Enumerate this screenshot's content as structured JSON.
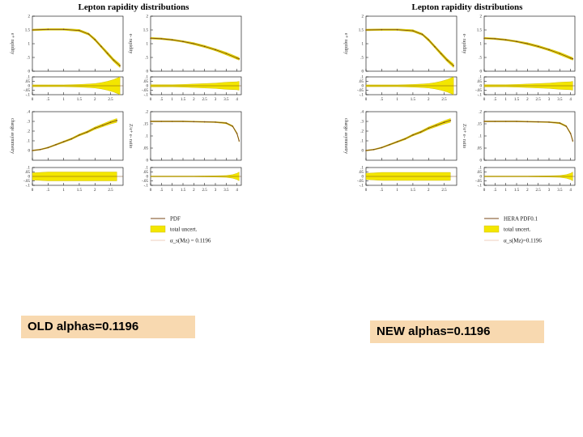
{
  "captions": {
    "left": "OLD alphas=0.1196",
    "right": "NEW alphas=0.1196"
  },
  "colors": {
    "band": "#f3e600",
    "band_edge": "#c8b400",
    "central": "#7a4a1a",
    "caption_bg": "#f8d9b0"
  },
  "chart_data": [
    {
      "type": "line",
      "title": "Lepton rapidity distributions",
      "legend": [
        "PDF",
        "total uncert.",
        "α_s(Mz) = 0.1196"
      ],
      "subplots": [
        {
          "name": "e-plus-rapidity",
          "ylabel": "e+ rapidity",
          "ylim": [
            0,
            2
          ],
          "yticks": [
            0,
            0.5,
            1,
            1.5,
            2
          ],
          "xlim": [
            0,
            2.9
          ],
          "xticks": [
            0,
            0.5,
            1,
            1.5,
            2,
            2.5
          ],
          "x": [
            0,
            0.5,
            1,
            1.5,
            1.8,
            2,
            2.2,
            2.4,
            2.6,
            2.8
          ],
          "y": [
            1.5,
            1.52,
            1.52,
            1.48,
            1.35,
            1.15,
            0.9,
            0.65,
            0.4,
            0.2
          ],
          "unc": [
            0.03,
            0.03,
            0.03,
            0.04,
            0.04,
            0.05,
            0.05,
            0.06,
            0.06,
            0.07
          ],
          "ratio": {
            "ylim": [
              -0.1,
              0.1
            ],
            "yticks": [
              -0.1,
              -0.05,
              0,
              0.05,
              0.1
            ],
            "unc": [
              0.01,
              0.01,
              0.01,
              0.015,
              0.02,
              0.025,
              0.035,
              0.05,
              0.07,
              0.1
            ]
          }
        },
        {
          "name": "e-minus-rapidity",
          "ylabel": "e- rapidity",
          "ylim": [
            0,
            2
          ],
          "yticks": [
            0,
            0.5,
            1,
            1.5,
            2
          ],
          "xlim": [
            0,
            4.2
          ],
          "xticks": [
            0,
            0.5,
            1,
            1.5,
            2,
            2.5,
            3,
            3.5,
            4
          ],
          "x": [
            0,
            0.5,
            1,
            1.5,
            2,
            2.5,
            3,
            3.5,
            4,
            4.1
          ],
          "y": [
            1.2,
            1.18,
            1.14,
            1.08,
            1,
            0.9,
            0.78,
            0.64,
            0.48,
            0.45
          ],
          "unc": [
            0.03,
            0.03,
            0.03,
            0.03,
            0.04,
            0.04,
            0.04,
            0.05,
            0.05,
            0.05
          ],
          "ratio": {
            "ylim": [
              -0.1,
              0.1
            ],
            "yticks": [
              -0.1,
              -0.05,
              0,
              0.05,
              0.1
            ],
            "unc": [
              0.012,
              0.012,
              0.012,
              0.015,
              0.02,
              0.025,
              0.03,
              0.04,
              0.045,
              0.05
            ]
          }
        },
        {
          "name": "charge-asymmetry",
          "ylabel": "charge asymmetry",
          "ylim": [
            -0.1,
            0.4
          ],
          "yticks": [
            0,
            0.1,
            0.2,
            0.3,
            0.4
          ],
          "xlim": [
            0,
            2.9
          ],
          "xticks": [
            0,
            0.5,
            1,
            1.5,
            2,
            2.5
          ],
          "x": [
            0,
            0.25,
            0.5,
            0.75,
            1,
            1.25,
            1.5,
            1.75,
            2,
            2.25,
            2.5,
            2.7
          ],
          "y": [
            0.0,
            0.01,
            0.03,
            0.06,
            0.09,
            0.12,
            0.16,
            0.19,
            0.23,
            0.26,
            0.29,
            0.31
          ],
          "unc": [
            0.005,
            0.005,
            0.006,
            0.007,
            0.008,
            0.009,
            0.01,
            0.011,
            0.013,
            0.015,
            0.017,
            0.02
          ],
          "ratio": {
            "ylim": [
              -0.1,
              0.1
            ],
            "yticks": [
              -0.1,
              -0.05,
              0,
              0.05,
              0.1
            ],
            "unc": [
              0.04,
              0.045,
              0.05,
              0.05,
              0.05,
              0.05,
              0.05,
              0.05,
              0.05,
              0.05,
              0.05,
              0.05
            ]
          }
        },
        {
          "name": "zee-ratio",
          "ylabel": "Z/e+ e- ratio",
          "ylim": [
            0,
            0.2
          ],
          "yticks": [
            0,
            0.05,
            0.1,
            0.15,
            0.2
          ],
          "xlim": [
            0,
            4.2
          ],
          "xticks": [
            0,
            0.5,
            1,
            1.5,
            2,
            2.5,
            3,
            3.5,
            4
          ],
          "x": [
            0,
            0.5,
            1,
            1.5,
            2,
            2.5,
            3,
            3.5,
            3.8,
            4,
            4.1
          ],
          "y": [
            0.16,
            0.16,
            0.16,
            0.16,
            0.159,
            0.158,
            0.157,
            0.153,
            0.14,
            0.11,
            0.08
          ],
          "unc": [
            0.002,
            0.002,
            0.002,
            0.002,
            0.002,
            0.002,
            0.002,
            0.003,
            0.003,
            0.004,
            0.005
          ],
          "ratio": {
            "ylim": [
              -0.1,
              0.1
            ],
            "yticks": [
              -0.1,
              -0.05,
              0,
              0.05,
              0.1
            ],
            "unc": [
              0.005,
              0.005,
              0.005,
              0.005,
              0.005,
              0.006,
              0.007,
              0.01,
              0.02,
              0.035,
              0.05
            ]
          }
        }
      ]
    },
    {
      "type": "line",
      "title": "Lepton rapidity distributions",
      "legend": [
        "HERA PDF0.1",
        "total uncert.",
        "α_s(Mz)=0.1196"
      ],
      "subplots": [
        {
          "name": "e-plus-rapidity",
          "ylabel": "e+ rapidity",
          "ylim": [
            0,
            2
          ],
          "yticks": [
            0,
            0.5,
            1,
            1.5,
            2
          ],
          "xlim": [
            0,
            2.9
          ],
          "xticks": [
            0,
            0.5,
            1,
            1.5,
            2,
            2.5
          ],
          "x": [
            0,
            0.5,
            1,
            1.5,
            1.8,
            2,
            2.2,
            2.4,
            2.6,
            2.8
          ],
          "y": [
            1.5,
            1.51,
            1.51,
            1.47,
            1.34,
            1.14,
            0.89,
            0.64,
            0.4,
            0.2
          ],
          "unc": [
            0.03,
            0.03,
            0.03,
            0.04,
            0.04,
            0.05,
            0.05,
            0.06,
            0.06,
            0.07
          ],
          "ratio": {
            "ylim": [
              -0.1,
              0.1
            ],
            "yticks": [
              -0.1,
              -0.05,
              0,
              0.05,
              0.1
            ],
            "unc": [
              0.01,
              0.01,
              0.01,
              0.015,
              0.02,
              0.025,
              0.035,
              0.05,
              0.07,
              0.1
            ]
          }
        },
        {
          "name": "e-minus-rapidity",
          "ylabel": "e- rapidity",
          "ylim": [
            0,
            2
          ],
          "yticks": [
            0,
            0.5,
            1,
            1.5,
            2
          ],
          "xlim": [
            0,
            4.2
          ],
          "xticks": [
            0,
            0.5,
            1,
            1.5,
            2,
            2.5,
            3,
            3.5,
            4
          ],
          "x": [
            0,
            0.5,
            1,
            1.5,
            2,
            2.5,
            3,
            3.5,
            4,
            4.1
          ],
          "y": [
            1.2,
            1.18,
            1.14,
            1.08,
            1,
            0.9,
            0.78,
            0.64,
            0.48,
            0.45
          ],
          "unc": [
            0.03,
            0.03,
            0.03,
            0.03,
            0.04,
            0.04,
            0.04,
            0.05,
            0.05,
            0.05
          ],
          "ratio": {
            "ylim": [
              -0.1,
              0.1
            ],
            "yticks": [
              -0.1,
              -0.05,
              0,
              0.05,
              0.1
            ],
            "unc": [
              0.012,
              0.012,
              0.012,
              0.015,
              0.02,
              0.025,
              0.03,
              0.04,
              0.045,
              0.05
            ]
          }
        },
        {
          "name": "charge-asymmetry",
          "ylabel": "charge asymmetry",
          "ylim": [
            -0.1,
            0.4
          ],
          "yticks": [
            0,
            0.1,
            0.2,
            0.3,
            0.4
          ],
          "xlim": [
            0,
            2.9
          ],
          "xticks": [
            0,
            0.5,
            1,
            1.5,
            2,
            2.5
          ],
          "x": [
            0,
            0.25,
            0.5,
            0.75,
            1,
            1.25,
            1.5,
            1.75,
            2,
            2.25,
            2.5,
            2.7
          ],
          "y": [
            0.0,
            0.01,
            0.03,
            0.06,
            0.09,
            0.12,
            0.16,
            0.19,
            0.23,
            0.26,
            0.29,
            0.31
          ],
          "unc": [
            0.005,
            0.005,
            0.006,
            0.007,
            0.008,
            0.009,
            0.01,
            0.011,
            0.013,
            0.015,
            0.017,
            0.02
          ],
          "ratio": {
            "ylim": [
              -0.1,
              0.1
            ],
            "yticks": [
              -0.1,
              -0.05,
              0,
              0.05,
              0.1
            ],
            "unc": [
              0.035,
              0.04,
              0.045,
              0.045,
              0.045,
              0.045,
              0.045,
              0.045,
              0.045,
              0.045,
              0.045,
              0.045
            ]
          }
        },
        {
          "name": "zee-ratio",
          "ylabel": "Z/e+ e- ratio",
          "ylim": [
            0,
            0.2
          ],
          "yticks": [
            0,
            0.05,
            0.1,
            0.15,
            0.2
          ],
          "xlim": [
            0,
            4.2
          ],
          "xticks": [
            0,
            0.5,
            1,
            1.5,
            2,
            2.5,
            3,
            3.5,
            4
          ],
          "x": [
            0,
            0.5,
            1,
            1.5,
            2,
            2.5,
            3,
            3.5,
            3.8,
            4,
            4.1
          ],
          "y": [
            0.16,
            0.16,
            0.16,
            0.16,
            0.159,
            0.158,
            0.157,
            0.153,
            0.14,
            0.11,
            0.08
          ],
          "unc": [
            0.002,
            0.002,
            0.002,
            0.002,
            0.002,
            0.002,
            0.002,
            0.003,
            0.003,
            0.004,
            0.005
          ],
          "ratio": {
            "ylim": [
              -0.1,
              0.1
            ],
            "yticks": [
              -0.1,
              -0.05,
              0,
              0.05,
              0.1
            ],
            "unc": [
              0.005,
              0.005,
              0.005,
              0.005,
              0.005,
              0.006,
              0.007,
              0.01,
              0.02,
              0.035,
              0.05
            ]
          }
        }
      ]
    }
  ]
}
